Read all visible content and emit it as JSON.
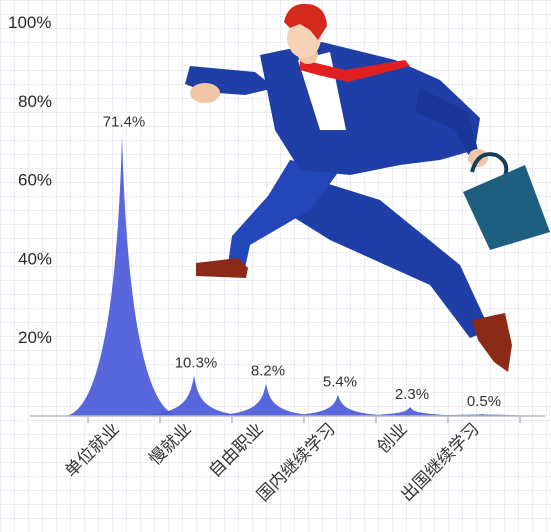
{
  "chart_data": {
    "type": "area",
    "categories": [
      "单位就业",
      "慢就业",
      "自由职业",
      "国内继续学习",
      "创业",
      "出国继续学习"
    ],
    "values": [
      71.4,
      10.3,
      8.2,
      5.4,
      2.3,
      0.5
    ],
    "value_labels": [
      "71.4%",
      "10.3%",
      "8.2%",
      "5.4%",
      "2.3%",
      "0.5%"
    ],
    "y_tick_labels": [
      "100%",
      "80%",
      "60%",
      "40%",
      "20%"
    ],
    "y_ticks": [
      100,
      80,
      60,
      40,
      20
    ],
    "ylim": [
      0,
      100
    ],
    "title": "",
    "xlabel": "",
    "ylabel": "",
    "grid": true,
    "colors": {
      "peak": "#4a5ad8",
      "axis": "#b9b9c6"
    }
  },
  "illustration": {
    "subject": "running-businessman",
    "colors": {
      "suit": "#1f3fa6",
      "tie": "#e02020",
      "hair": "#d42a1b",
      "briefcase": "#1e5f80",
      "shoes": "#8b2a16"
    }
  }
}
